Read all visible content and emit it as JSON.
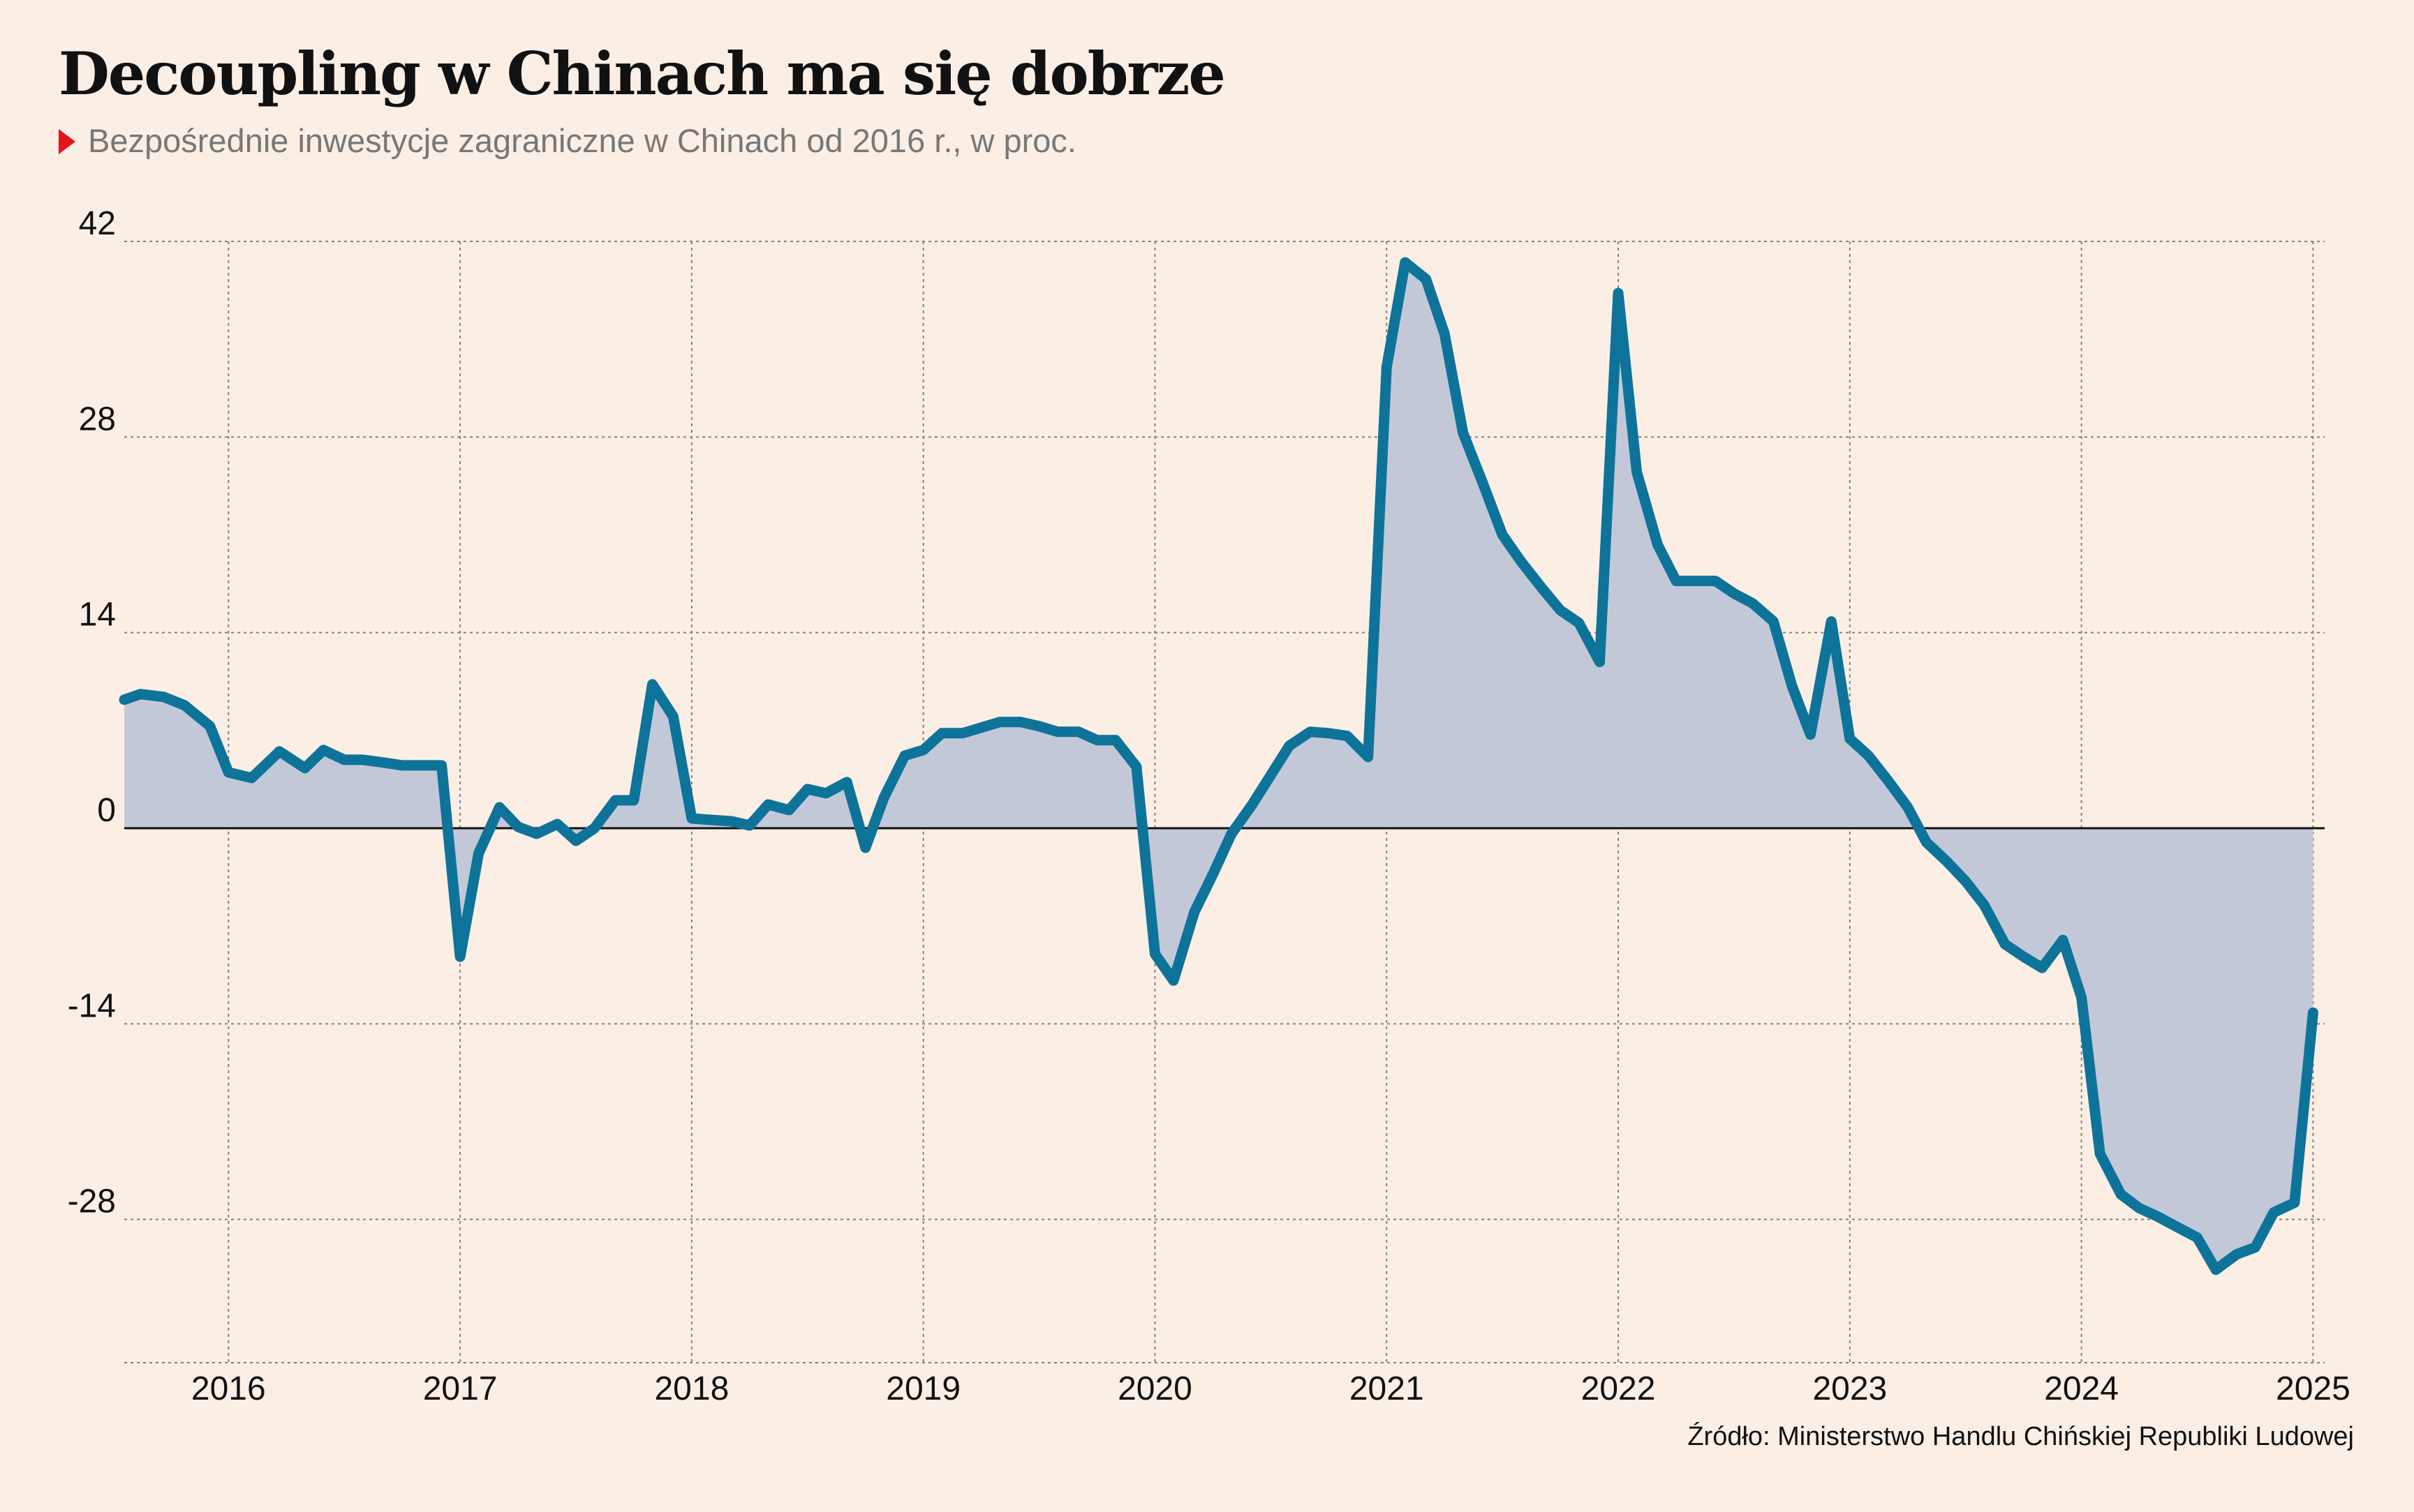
{
  "header": {
    "title": "Decoupling w Chinach ma się dobrze",
    "subtitle": "Bezpośrednie inwestycje zagraniczne w Chinach od 2016 r., w proc."
  },
  "footer": {
    "source": "Źródło: Ministerstwo Handlu Chińskiej Republiki Ludowej"
  },
  "colors": {
    "background": "#faeee5",
    "line": "#0d7399",
    "area": "#c3c8d9",
    "marker": "#e3141b"
  },
  "chart_data": {
    "type": "area",
    "title": "Decoupling w Chinach ma się dobrze",
    "subtitle": "Bezpośrednie inwestycje zagraniczne w Chinach od 2016 r., w proc.",
    "xlabel": "",
    "ylabel": "",
    "x_ticks": [
      "2016",
      "2017",
      "2018",
      "2019",
      "2020",
      "2021",
      "2022",
      "2023",
      "2024",
      "2025"
    ],
    "y_ticks": [
      42,
      28,
      14,
      0,
      -14,
      -28
    ],
    "xlim": [
      2015.55,
      2025.05
    ],
    "ylim": [
      -39,
      42
    ],
    "grid": true,
    "legend": "none",
    "series": [
      {
        "x": [
          2015.55,
          2015.62,
          2015.72,
          2015.81,
          2015.92,
          2016.0,
          2016.1,
          2016.22,
          2016.33,
          2016.41,
          2016.5,
          2016.58,
          2016.67,
          2016.75,
          2016.85,
          2016.92,
          2017.0,
          2017.08,
          2017.17,
          2017.25,
          2017.33,
          2017.42,
          2017.5,
          2017.58,
          2017.67,
          2017.75,
          2017.83,
          2017.92,
          2018.0,
          2018.08,
          2018.17,
          2018.25,
          2018.33,
          2018.42,
          2018.5,
          2018.58,
          2018.67,
          2018.75,
          2018.83,
          2018.92,
          2019.0,
          2019.08,
          2019.17,
          2019.25,
          2019.33,
          2019.42,
          2019.5,
          2019.58,
          2019.67,
          2019.75,
          2019.83,
          2019.92,
          2020.0,
          2020.08,
          2020.17,
          2020.25,
          2020.33,
          2020.42,
          2020.5,
          2020.58,
          2020.67,
          2020.75,
          2020.83,
          2020.92,
          2021.0,
          2021.08,
          2021.17,
          2021.25,
          2021.33,
          2021.42,
          2021.5,
          2021.58,
          2021.67,
          2021.75,
          2021.83,
          2021.92,
          2022.0,
          2022.08,
          2022.17,
          2022.25,
          2022.33,
          2022.42,
          2022.5,
          2022.58,
          2022.67,
          2022.75,
          2022.83,
          2022.92,
          2023.0,
          2023.08,
          2023.17,
          2023.25,
          2023.33,
          2023.42,
          2023.5,
          2023.58,
          2023.67,
          2023.75,
          2023.83,
          2023.92,
          2024.0,
          2024.08,
          2024.17,
          2024.25,
          2024.33,
          2024.42,
          2024.5,
          2024.58,
          2024.67,
          2024.75,
          2024.83,
          2024.92,
          2025.0
        ],
        "values": [
          9.2,
          9.6,
          9.4,
          8.8,
          7.3,
          4.0,
          3.6,
          5.5,
          4.3,
          5.6,
          4.9,
          4.9,
          4.7,
          4.5,
          4.5,
          4.5,
          -9.2,
          -1.8,
          1.5,
          0.1,
          -0.4,
          0.3,
          -0.9,
          0.0,
          2.0,
          2.0,
          10.3,
          8.0,
          0.7,
          0.6,
          0.5,
          0.2,
          1.7,
          1.3,
          2.8,
          2.5,
          3.3,
          -1.4,
          2.2,
          5.2,
          5.6,
          6.8,
          6.8,
          7.2,
          7.6,
          7.6,
          7.3,
          6.9,
          6.9,
          6.3,
          6.3,
          4.4,
          -9.0,
          -10.9,
          -6.0,
          -3.3,
          -0.4,
          1.7,
          3.8,
          5.9,
          6.9,
          6.8,
          6.6,
          5.1,
          33.0,
          40.5,
          39.3,
          35.4,
          28.3,
          24.5,
          21.0,
          19.1,
          17.2,
          15.6,
          14.7,
          11.9,
          38.3,
          25.5,
          20.3,
          17.7,
          17.7,
          17.7,
          16.8,
          16.1,
          14.8,
          10.2,
          6.7,
          14.8,
          6.4,
          5.2,
          3.3,
          1.5,
          -1.0,
          -2.4,
          -3.8,
          -5.5,
          -8.3,
          -9.2,
          -10.0,
          -8.0,
          -12.1,
          -23.3,
          -26.2,
          -27.2,
          -27.8,
          -28.6,
          -29.3,
          -31.6,
          -30.5,
          -30.0,
          -27.5,
          -26.8,
          -13.2
        ]
      }
    ]
  }
}
